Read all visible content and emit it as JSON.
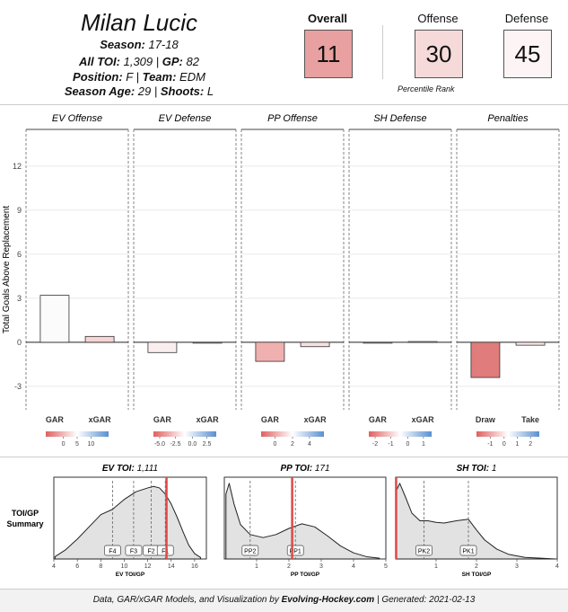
{
  "player": {
    "name": "Milan Lucic",
    "season_label": "Season:",
    "season": "17-18",
    "toi_label": "All TOI:",
    "toi": "1,309",
    "gp_label": "GP:",
    "gp": "82",
    "position_label": "Position:",
    "position": "F",
    "team_label": "Team:",
    "team": "EDM",
    "age_label": "Season Age:",
    "age": "29",
    "shoots_label": "Shoots:",
    "shoots": "L"
  },
  "percentiles": {
    "overall_label": "Overall",
    "overall": "11",
    "overall_color": "#e8a0a0",
    "offense_label": "Offense",
    "offense": "30",
    "offense_color": "#f6dada",
    "defense_label": "Defense",
    "defense": "45",
    "defense_color": "#fdf5f5",
    "note": "Percentile Rank"
  },
  "colors": {
    "neg": "#e06060",
    "pos": "#5a8fd0",
    "bar_stroke": "#333333"
  },
  "chart_data": [
    {
      "type": "bar",
      "ylabel": "Total Goals Above Replacement",
      "ylim": [
        -4.6,
        14.5
      ],
      "yticks": [
        "12",
        "9",
        "6",
        "3",
        "0",
        "-3"
      ],
      "ytick_values": [
        12,
        9,
        6,
        3,
        0,
        -3
      ],
      "panels": [
        {
          "title": "EV Offense",
          "categories": [
            "GAR",
            "xGAR"
          ],
          "values": [
            3.2,
            0.4
          ],
          "fills": [
            "#fbfbfb",
            "#f5d5d5"
          ],
          "legend": {
            "ticks": [
              "0",
              "5",
              "10"
            ],
            "tick_pos": [
              0.28,
              0.5,
              0.72
            ]
          }
        },
        {
          "title": "EV Defense",
          "categories": [
            "GAR",
            "xGAR"
          ],
          "values": [
            -0.7,
            -0.05
          ],
          "fills": [
            "#fbeeee",
            "#fdf7f7"
          ],
          "legend": {
            "ticks": [
              "-5.0",
              "-2.5",
              "0.0",
              "2.5"
            ],
            "tick_pos": [
              0.1,
              0.35,
              0.62,
              0.85
            ]
          }
        },
        {
          "title": "PP Offense",
          "categories": [
            "GAR",
            "xGAR"
          ],
          "values": [
            -1.3,
            -0.3
          ],
          "fills": [
            "#f0b0b0",
            "#f8e0e0"
          ],
          "legend": {
            "ticks": [
              "0",
              "2",
              "4"
            ],
            "tick_pos": [
              0.22,
              0.5,
              0.77
            ]
          }
        },
        {
          "title": "SH Defense",
          "categories": [
            "GAR",
            "xGAR"
          ],
          "values": [
            -0.05,
            0.05
          ],
          "fills": [
            "#fdf7f7",
            "#fafafa"
          ],
          "legend": {
            "ticks": [
              "-2",
              "-1",
              "0",
              "1"
            ],
            "tick_pos": [
              0.1,
              0.35,
              0.62,
              0.87
            ]
          }
        },
        {
          "title": "Penalties",
          "categories": [
            "Draw",
            "Take"
          ],
          "values": [
            -2.4,
            -0.2
          ],
          "fills": [
            "#e07c7c",
            "#f8e6e6"
          ],
          "legend": {
            "ticks": [
              "-1",
              "0",
              "1",
              "2"
            ],
            "tick_pos": [
              0.22,
              0.44,
              0.65,
              0.86
            ]
          }
        }
      ]
    },
    {
      "type": "area",
      "row_label": "TOI/GP Summary",
      "row_label_lines": [
        "TOI/GP",
        "Summary"
      ],
      "panels": [
        {
          "title_label": "EV TOI:",
          "title_value": "1,111",
          "xlabel": "EV TOI/GP",
          "xlim": [
            4,
            17
          ],
          "xticks": [
            "4",
            "6",
            "8",
            "10",
            "12",
            "14",
            "16"
          ],
          "xtick_values": [
            4,
            6,
            8,
            10,
            12,
            14,
            16
          ],
          "player_value": 13.6,
          "markers": [
            {
              "label": "F4",
              "x": 9.0
            },
            {
              "label": "F3",
              "x": 10.8
            },
            {
              "label": "F2",
              "x": 12.3
            },
            {
              "label": "F1",
              "x": 13.5
            }
          ],
          "density_x": [
            4.1,
            5,
            6,
            7,
            8,
            9,
            10,
            11,
            12,
            12.5,
            13,
            13.5,
            14,
            14.5,
            15,
            15.5,
            16,
            16.5
          ],
          "density_y": [
            0.03,
            0.12,
            0.26,
            0.42,
            0.58,
            0.65,
            0.78,
            0.88,
            0.93,
            0.95,
            0.93,
            0.85,
            0.72,
            0.55,
            0.36,
            0.18,
            0.07,
            0.02
          ]
        },
        {
          "title_label": "PP TOI:",
          "title_value": "171",
          "xlabel": "PP TOI/GP",
          "xlim": [
            0,
            5
          ],
          "xticks": [
            "1",
            "2",
            "3",
            "4",
            "5"
          ],
          "xtick_values": [
            1,
            2,
            3,
            4,
            5
          ],
          "player_value": 2.1,
          "markers": [
            {
              "label": "PP2",
              "x": 0.8
            },
            {
              "label": "PP1",
              "x": 2.2
            }
          ],
          "density_x": [
            0.05,
            0.15,
            0.3,
            0.5,
            0.8,
            1.2,
            1.6,
            2.0,
            2.4,
            2.8,
            3.2,
            3.6,
            4.0,
            4.4,
            4.8
          ],
          "density_y": [
            0.85,
            0.99,
            0.72,
            0.45,
            0.32,
            0.28,
            0.32,
            0.4,
            0.46,
            0.42,
            0.3,
            0.17,
            0.08,
            0.03,
            0.01
          ]
        },
        {
          "title_label": "SH TOI:",
          "title_value": "1",
          "xlabel": "SH TOI/GP",
          "xlim": [
            0,
            4
          ],
          "xticks": [
            "1",
            "2",
            "3",
            "4"
          ],
          "xtick_values": [
            1,
            2,
            3,
            4
          ],
          "player_value": 0.01,
          "markers": [
            {
              "label": "PK2",
              "x": 0.7
            },
            {
              "label": "PK1",
              "x": 1.8
            }
          ],
          "density_x": [
            0.02,
            0.1,
            0.25,
            0.4,
            0.6,
            0.8,
            1.0,
            1.2,
            1.5,
            1.8,
            2.0,
            2.2,
            2.5,
            2.8,
            3.2,
            3.6,
            3.95
          ],
          "density_y": [
            0.9,
            0.99,
            0.8,
            0.6,
            0.5,
            0.5,
            0.48,
            0.47,
            0.5,
            0.52,
            0.38,
            0.25,
            0.13,
            0.06,
            0.02,
            0.01,
            0.0
          ]
        }
      ]
    }
  ],
  "footer": {
    "prefix": "Data, GAR/xGAR Models, and Visualization by",
    "site": "Evolving-Hockey.com",
    "generated_label": "| Generated:",
    "generated": "2021-02-13"
  }
}
